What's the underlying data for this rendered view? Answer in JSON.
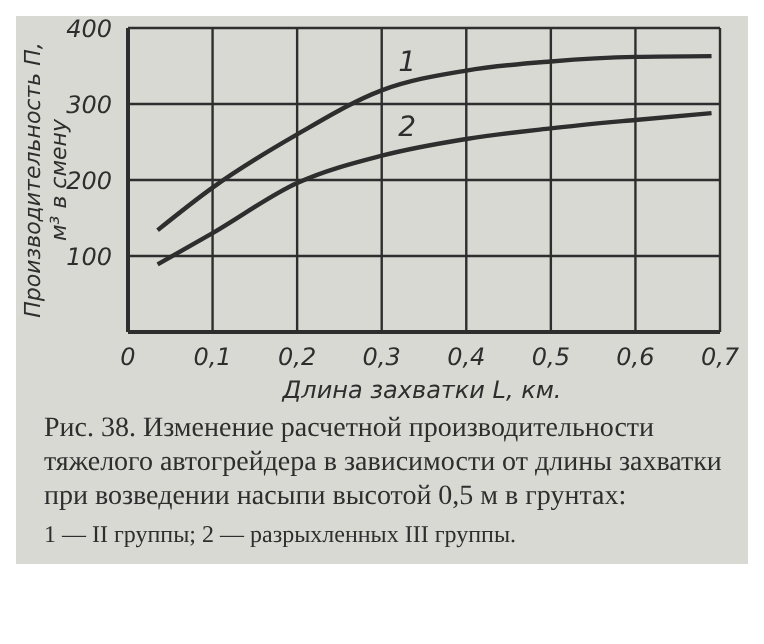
{
  "chart_data": {
    "type": "line",
    "xlabel": "Длина захватки L, км.",
    "ylabel": "Производительность П, м³ в смену",
    "xlim": [
      0,
      0.7
    ],
    "xticks": [
      0,
      {
        "value": 0.1,
        "label": "0,1"
      },
      {
        "value": 0.2,
        "label": "0,2"
      },
      {
        "value": 0.3,
        "label": "0,3"
      },
      {
        "value": 0.4,
        "label": "0,4"
      },
      {
        "value": 0.5,
        "label": "0,5"
      },
      {
        "value": 0.6,
        "label": "0,6"
      },
      {
        "value": 0.7,
        "label": "0,7"
      }
    ],
    "ylim": [
      0,
      400
    ],
    "yticks": [
      100,
      200,
      300,
      400
    ],
    "grid": true,
    "legend": false,
    "marker": "none",
    "line_style": "solid",
    "x": [
      0.035,
      0.1,
      0.2,
      0.3,
      0.4,
      0.5,
      0.6,
      0.69
    ],
    "series": [
      {
        "color": "#2e2e2e",
        "values": [
          134,
          190,
          260,
          318,
          344,
          356,
          362,
          363
        ]
      },
      {
        "color": "#2e2e2e",
        "values": [
          89,
          130,
          196,
          232,
          254,
          268,
          279,
          288
        ]
      }
    ],
    "annotations": [
      {
        "text": "1",
        "x": 0.33,
        "y": 330
      },
      {
        "text": "2",
        "x": 0.33,
        "y": 245
      },
      "Рис. 38. Изменение расчетной производительности тяжелого автогрейдера в зависимости от длины захватки при возведении насыпи высотой 0,5 м в грунтах:",
      "1 — II группы; 2 — разрыхленных III группы."
    ]
  }
}
